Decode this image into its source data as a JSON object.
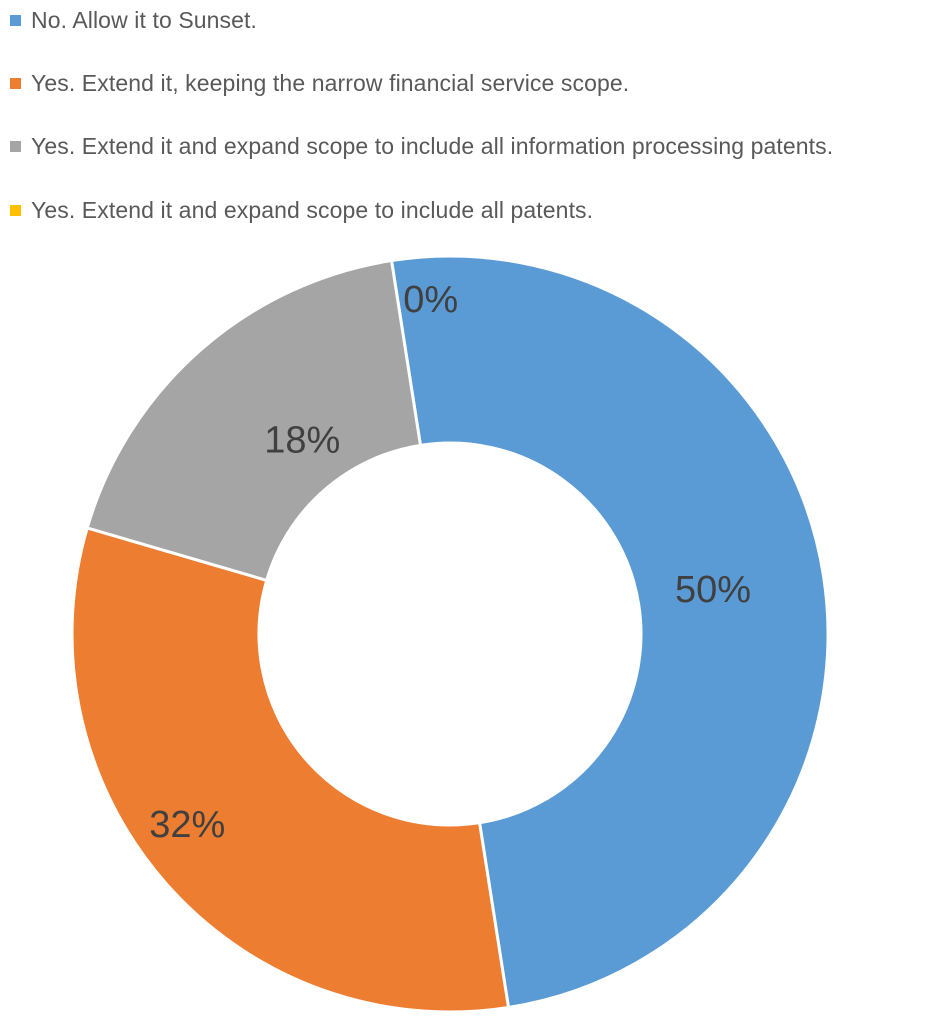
{
  "chart_data": {
    "type": "pie",
    "title": "",
    "legend_position": "top",
    "series": [
      {
        "name": "No. Allow it to Sunset.",
        "value": 50,
        "label": "50%",
        "color": "#5B9BD5"
      },
      {
        "name": "Yes. Extend it, keeping the narrow financial service scope.",
        "value": 32,
        "label": "32%",
        "color": "#ED7D31"
      },
      {
        "name": "Yes. Extend it and expand scope to include all information processing patents.",
        "value": 18,
        "label": "18%",
        "color": "#A5A5A5"
      },
      {
        "name": "Yes. Extend it and expand scope to include all patents.",
        "value": 0,
        "label": "0%",
        "color": "#FFC000"
      }
    ]
  }
}
